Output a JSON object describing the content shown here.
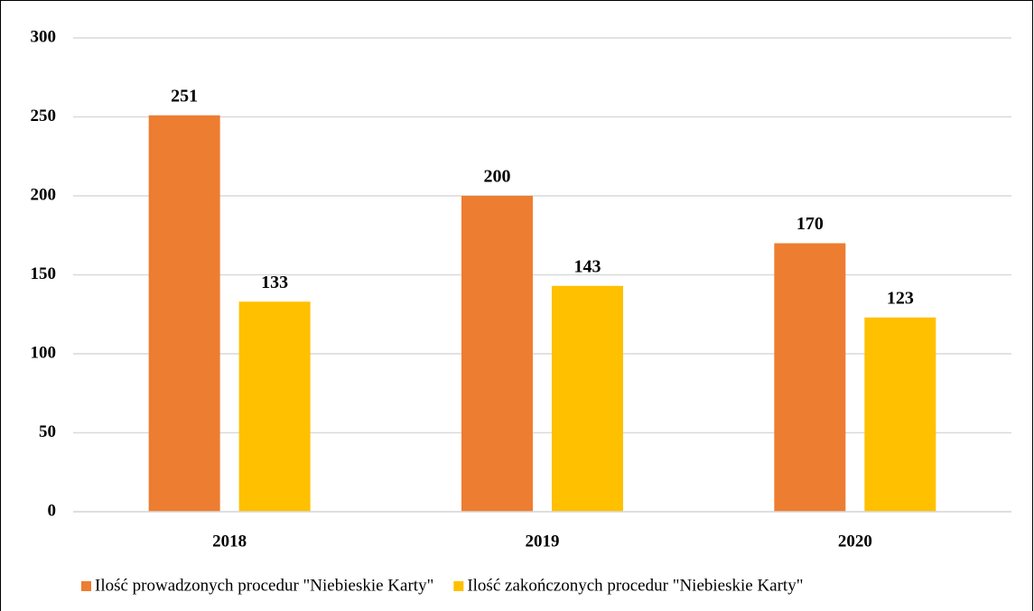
{
  "chart_data": {
    "type": "bar",
    "categories": [
      "2018",
      "2019",
      "2020"
    ],
    "series": [
      {
        "name": "Ilość prowadzonych procedur \"Niebieskie Karty\"",
        "color": "#ed7d31",
        "values": [
          251,
          200,
          170
        ]
      },
      {
        "name": "Ilość zakończonych procedur \"Niebieskie Karty\"",
        "color": "#ffc000",
        "values": [
          133,
          143,
          123
        ]
      }
    ],
    "ylim": [
      0,
      300
    ],
    "yticks": [
      0,
      50,
      100,
      150,
      200,
      250,
      300
    ],
    "grid": true,
    "legend": "bottom"
  }
}
